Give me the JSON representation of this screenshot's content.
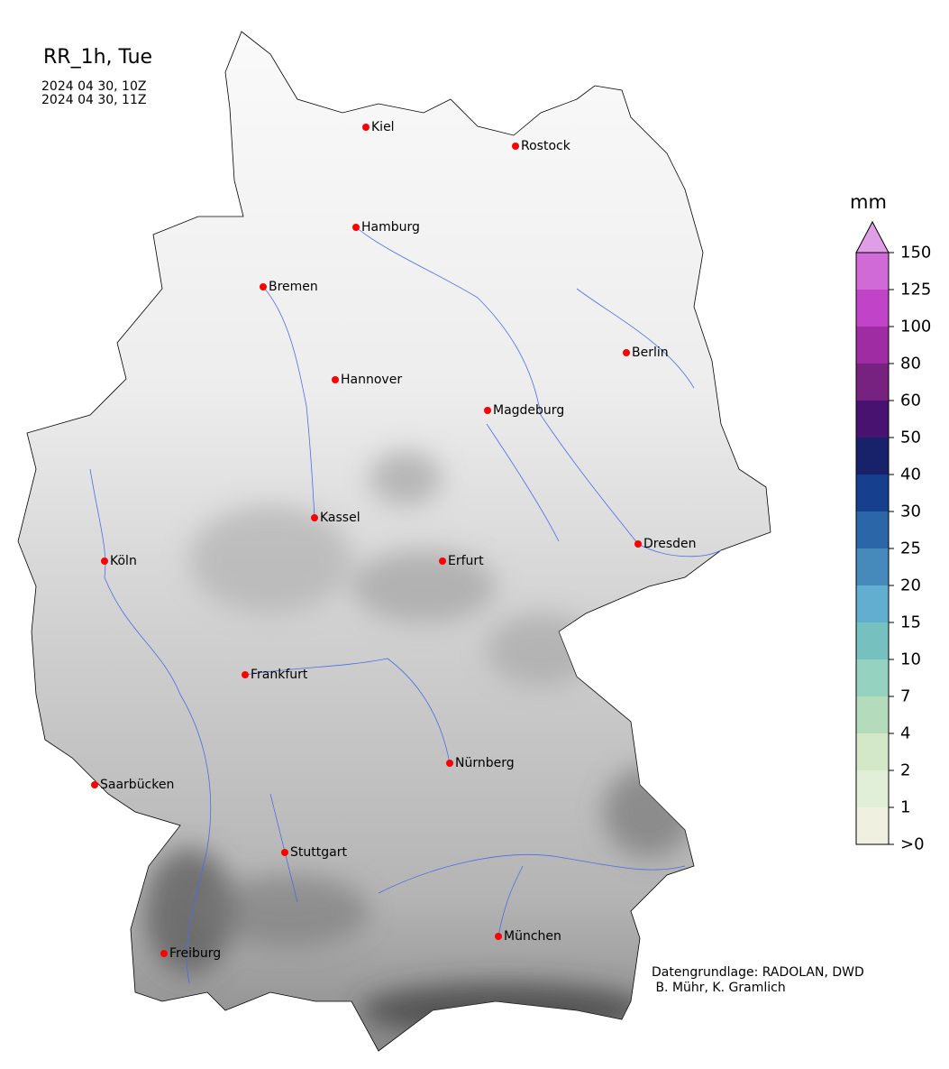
{
  "header": {
    "title": "RR_1h, Tue",
    "period_start": "2024 04 30, 10Z",
    "period_end": "2024 04 30, 11Z"
  },
  "colorbar": {
    "unit": "mm",
    "ticks": [
      ">0",
      "1",
      "2",
      "4",
      "7",
      "10",
      "15",
      "20",
      "25",
      "30",
      "40",
      "50",
      "60",
      "80",
      "100",
      "125",
      "150"
    ],
    "colors": [
      "#f0f0e0",
      "#e1efd8",
      "#d2e8c8",
      "#b4dcbc",
      "#96d2c0",
      "#76c0c0",
      "#62aed0",
      "#4689bb",
      "#2b66a8",
      "#163f8e",
      "#17226a",
      "#481270",
      "#772180",
      "#a02ca4",
      "#c144c8",
      "#d06ad6"
    ],
    "extend_color": "#e09ee6",
    "extend": "max"
  },
  "map": {
    "region": "Germany",
    "cities": [
      "Kiel",
      "Rostock",
      "Hamburg",
      "Bremen",
      "Berlin",
      "Hannover",
      "Magdeburg",
      "Kassel",
      "Dresden",
      "Köln",
      "Erfurt",
      "Frankfurt",
      "Nürnberg",
      "Saarbücken",
      "Stuttgart",
      "München",
      "Freiburg"
    ],
    "city_marker_color": "#ff0000",
    "river_color": "#4a6ee8",
    "border_color": "#000000"
  },
  "credits": {
    "line1": "Datengrundlage: RADOLAN, DWD",
    "line2": " B. Mühr, K. Gramlich"
  }
}
